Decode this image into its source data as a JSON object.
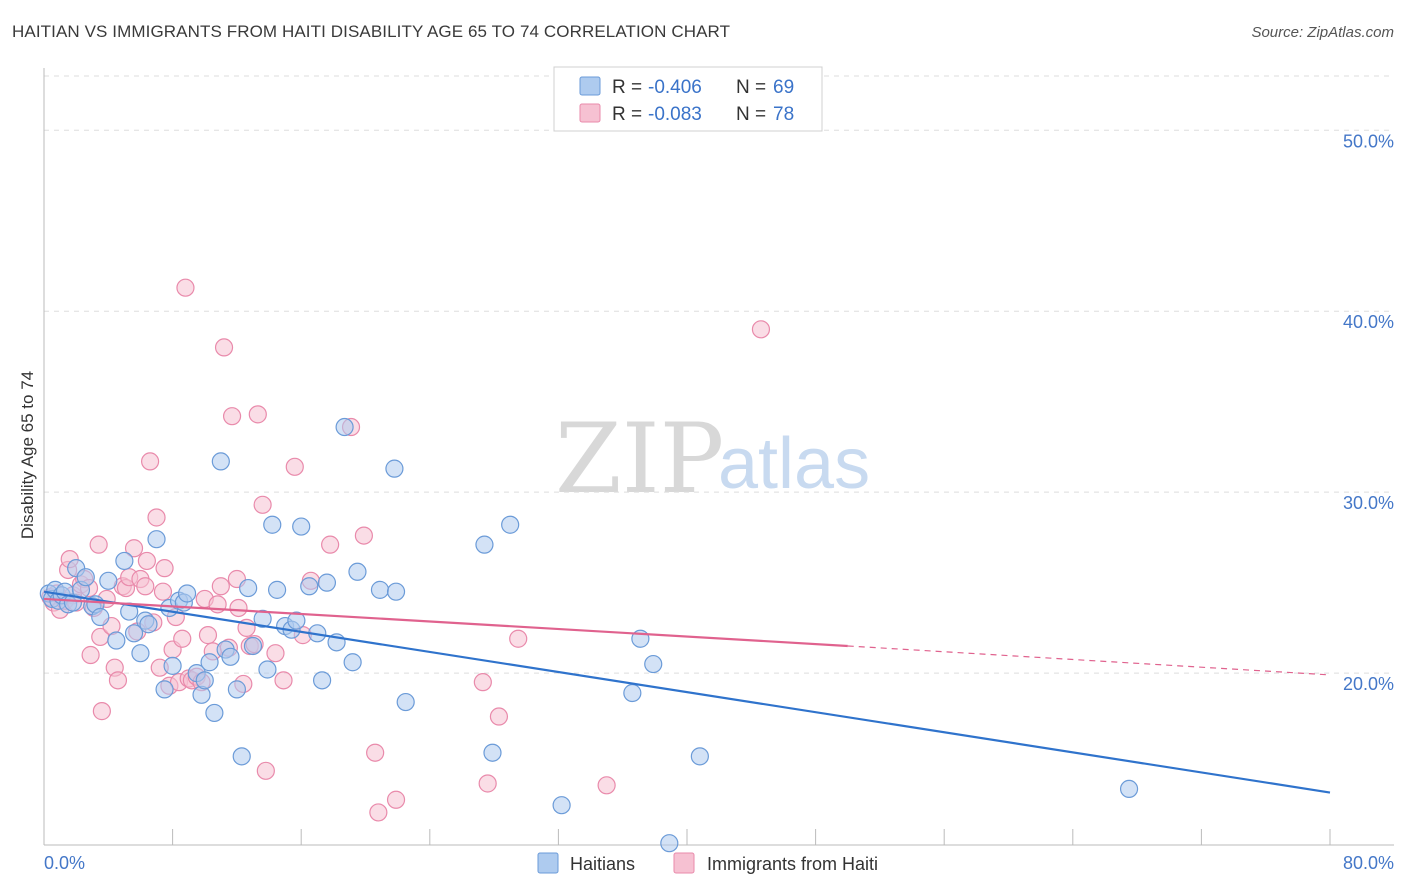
{
  "title": "HAITIAN VS IMMIGRANTS FROM HAITI DISABILITY AGE 65 TO 74 CORRELATION CHART",
  "source": "Source: ZipAtlas.com",
  "watermark": {
    "part1": "ZIP",
    "part2": "atlas"
  },
  "legend": {
    "rows": [
      {
        "r_label": "R =",
        "r_value": "-0.406",
        "n_label": "N =",
        "n_value": "69"
      },
      {
        "r_label": "R =",
        "r_value": "-0.083",
        "n_label": "N =",
        "n_value": "78"
      }
    ]
  },
  "bottom_legend": [
    "Haitians",
    "Immigrants from Haiti"
  ],
  "colors": {
    "blue_fill": "#aecbef",
    "blue_stroke": "#6b9bd8",
    "blue_line": "#2f73cc",
    "pink_fill": "#f6c1d2",
    "pink_stroke": "#e98aab",
    "pink_line": "#e0628e",
    "grid": "#dddddd",
    "tick_text": "#4477c8"
  },
  "chart_data": {
    "type": "scatter",
    "title": "HAITIAN VS IMMIGRANTS FROM HAITI DISABILITY AGE 65 TO 74 CORRELATION CHART",
    "xlabel": "",
    "ylabel": "Disability Age 65 to 74",
    "xlim": [
      0,
      80
    ],
    "ylim": [
      10.5,
      53
    ],
    "x_tick_labels": [
      "0.0%",
      "80.0%"
    ],
    "y_ticks": [
      20,
      30,
      40,
      50
    ],
    "y_tick_labels": [
      "20.0%",
      "30.0%",
      "40.0%",
      "50.0%"
    ],
    "grid": true,
    "legend_position": "top-center",
    "series": [
      {
        "name": "Haitians",
        "R": -0.406,
        "N": 69,
        "trend": {
          "x": [
            0,
            80
          ],
          "y": [
            24.5,
            13.4
          ]
        },
        "points": [
          [
            0.3,
            24.4
          ],
          [
            0.5,
            24.1
          ],
          [
            0.7,
            24.6
          ],
          [
            0.9,
            24.0
          ],
          [
            1.1,
            24.3
          ],
          [
            1.3,
            24.5
          ],
          [
            1.5,
            23.8
          ],
          [
            1.8,
            23.9
          ],
          [
            2.0,
            25.8
          ],
          [
            2.3,
            24.6
          ],
          [
            2.6,
            25.3
          ],
          [
            3.0,
            23.7
          ],
          [
            3.2,
            23.8
          ],
          [
            3.5,
            23.1
          ],
          [
            4.0,
            25.1
          ],
          [
            4.5,
            21.8
          ],
          [
            5.0,
            26.2
          ],
          [
            5.3,
            23.4
          ],
          [
            5.6,
            22.2
          ],
          [
            6.0,
            21.1
          ],
          [
            6.3,
            22.9
          ],
          [
            6.5,
            22.7
          ],
          [
            7.0,
            27.4
          ],
          [
            7.5,
            19.1
          ],
          [
            7.8,
            23.6
          ],
          [
            8.0,
            20.4
          ],
          [
            8.4,
            24.0
          ],
          [
            8.7,
            23.9
          ],
          [
            8.9,
            24.4
          ],
          [
            9.5,
            20.0
          ],
          [
            9.8,
            18.8
          ],
          [
            10.0,
            19.6
          ],
          [
            10.3,
            20.6
          ],
          [
            10.6,
            17.8
          ],
          [
            11.0,
            31.7
          ],
          [
            11.3,
            21.3
          ],
          [
            11.6,
            20.9
          ],
          [
            12.0,
            19.1
          ],
          [
            12.3,
            15.4
          ],
          [
            12.7,
            24.7
          ],
          [
            13.0,
            21.5
          ],
          [
            13.6,
            23.0
          ],
          [
            13.9,
            20.2
          ],
          [
            14.2,
            28.2
          ],
          [
            14.5,
            24.6
          ],
          [
            15.0,
            22.6
          ],
          [
            15.4,
            22.4
          ],
          [
            15.7,
            22.9
          ],
          [
            16.0,
            28.1
          ],
          [
            16.5,
            24.8
          ],
          [
            17.0,
            22.2
          ],
          [
            17.3,
            19.6
          ],
          [
            17.6,
            25.0
          ],
          [
            18.2,
            21.7
          ],
          [
            18.7,
            33.6
          ],
          [
            19.2,
            20.6
          ],
          [
            19.5,
            25.6
          ],
          [
            20.9,
            24.6
          ],
          [
            21.8,
            31.3
          ],
          [
            21.9,
            24.5
          ],
          [
            22.5,
            18.4
          ],
          [
            27.4,
            27.1
          ],
          [
            27.9,
            15.6
          ],
          [
            29.0,
            28.2
          ],
          [
            32.2,
            12.7
          ],
          [
            36.6,
            18.9
          ],
          [
            37.1,
            21.9
          ],
          [
            37.9,
            20.5
          ],
          [
            38.9,
            10.6
          ],
          [
            40.8,
            15.4
          ],
          [
            67.5,
            13.6
          ]
        ]
      },
      {
        "name": "Immigrants from Haiti",
        "R": -0.083,
        "N": 78,
        "trend": {
          "x": [
            0,
            50
          ],
          "y": [
            24.1,
            21.5
          ]
        },
        "trend_dashed": {
          "x": [
            50,
            80
          ],
          "y": [
            21.5,
            19.9
          ]
        },
        "points": [
          [
            0.4,
            24.2
          ],
          [
            0.6,
            23.9
          ],
          [
            0.8,
            24.4
          ],
          [
            1.0,
            23.5
          ],
          [
            1.3,
            24.0
          ],
          [
            1.5,
            25.7
          ],
          [
            1.6,
            26.3
          ],
          [
            1.8,
            24.3
          ],
          [
            2.0,
            23.9
          ],
          [
            2.3,
            24.9
          ],
          [
            2.5,
            25.2
          ],
          [
            2.8,
            24.7
          ],
          [
            2.9,
            21.0
          ],
          [
            3.1,
            23.6
          ],
          [
            3.4,
            27.1
          ],
          [
            3.5,
            22.0
          ],
          [
            3.6,
            17.9
          ],
          [
            3.9,
            24.1
          ],
          [
            4.2,
            22.6
          ],
          [
            4.4,
            20.3
          ],
          [
            4.6,
            19.6
          ],
          [
            4.9,
            24.8
          ],
          [
            5.1,
            24.7
          ],
          [
            5.3,
            25.3
          ],
          [
            5.6,
            26.9
          ],
          [
            5.8,
            22.3
          ],
          [
            6.0,
            25.2
          ],
          [
            6.3,
            24.8
          ],
          [
            6.4,
            26.2
          ],
          [
            6.6,
            31.7
          ],
          [
            6.8,
            22.8
          ],
          [
            7.0,
            28.6
          ],
          [
            7.2,
            20.3
          ],
          [
            7.4,
            24.5
          ],
          [
            7.5,
            25.8
          ],
          [
            7.8,
            19.3
          ],
          [
            8.0,
            21.3
          ],
          [
            8.2,
            23.1
          ],
          [
            8.4,
            19.5
          ],
          [
            8.6,
            21.9
          ],
          [
            8.8,
            41.3
          ],
          [
            9.0,
            19.7
          ],
          [
            9.2,
            19.6
          ],
          [
            9.5,
            19.8
          ],
          [
            9.8,
            19.5
          ],
          [
            10.0,
            24.1
          ],
          [
            10.2,
            22.1
          ],
          [
            10.5,
            21.2
          ],
          [
            10.8,
            23.8
          ],
          [
            11.0,
            24.8
          ],
          [
            11.2,
            38.0
          ],
          [
            11.5,
            21.4
          ],
          [
            11.7,
            34.2
          ],
          [
            12.0,
            25.2
          ],
          [
            12.1,
            23.6
          ],
          [
            12.4,
            19.4
          ],
          [
            12.6,
            22.5
          ],
          [
            12.8,
            21.5
          ],
          [
            13.1,
            21.6
          ],
          [
            13.3,
            34.3
          ],
          [
            13.6,
            29.3
          ],
          [
            13.8,
            14.6
          ],
          [
            14.4,
            21.1
          ],
          [
            14.9,
            19.6
          ],
          [
            15.6,
            31.4
          ],
          [
            16.1,
            22.1
          ],
          [
            16.6,
            25.1
          ],
          [
            17.8,
            27.1
          ],
          [
            19.1,
            33.6
          ],
          [
            19.9,
            27.6
          ],
          [
            20.6,
            15.6
          ],
          [
            20.8,
            12.3
          ],
          [
            21.9,
            13.0
          ],
          [
            27.3,
            19.5
          ],
          [
            27.6,
            13.9
          ],
          [
            28.3,
            17.6
          ],
          [
            29.5,
            21.9
          ],
          [
            35.0,
            13.8
          ],
          [
            44.6,
            39.0
          ]
        ]
      }
    ]
  }
}
